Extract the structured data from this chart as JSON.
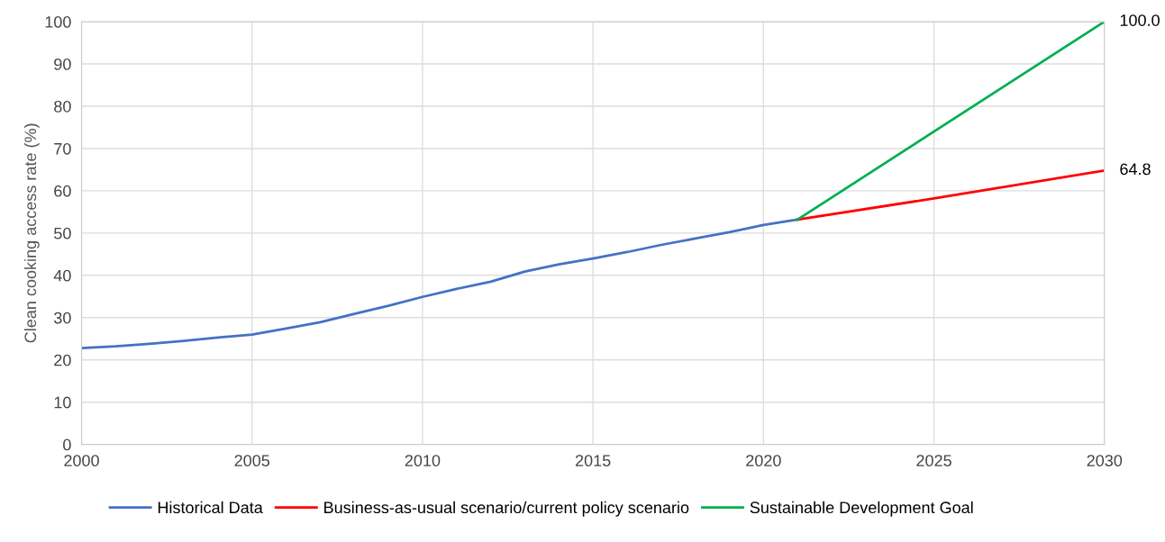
{
  "chart_data": {
    "type": "line",
    "ylabel": "Clean cooking access rate (%)",
    "xlim": [
      2000,
      2030
    ],
    "xticks": [
      2000,
      2005,
      2010,
      2015,
      2020,
      2025,
      2030
    ],
    "ylim": [
      0,
      100
    ],
    "yticks": [
      0,
      10,
      20,
      30,
      40,
      50,
      60,
      70,
      80,
      90,
      100
    ],
    "grid": true,
    "legend": "bottom",
    "marker": "none",
    "line_style": "solid",
    "series": [
      {
        "name": "Historical Data",
        "color": "#4472c4",
        "x": [
          2000,
          2001,
          2002,
          2003,
          2004,
          2005,
          2006,
          2007,
          2008,
          2009,
          2010,
          2011,
          2012,
          2013,
          2014,
          2015,
          2016,
          2017,
          2018,
          2019,
          2020,
          2021
        ],
        "values": [
          22.8,
          23.2,
          23.8,
          24.5,
          25.3,
          26.0,
          27.4,
          28.9,
          30.9,
          32.8,
          34.9,
          36.8,
          38.5,
          40.9,
          42.6,
          44.0,
          45.5,
          47.2,
          48.7,
          50.2,
          51.9,
          53.2
        ]
      },
      {
        "name": "Business-as-usual scenario/current policy scenario",
        "color": "#ff0000",
        "x": [
          2021,
          2025,
          2030
        ],
        "values": [
          53.2,
          58.2,
          64.8
        ]
      },
      {
        "name": "Sustainable Development Goal",
        "color": "#00b050",
        "x": [
          2021,
          2030
        ],
        "values": [
          53.2,
          100.0
        ]
      }
    ],
    "annotations": [
      {
        "text": "100.0",
        "x": 2030,
        "y": 100.0
      },
      {
        "text": "64.8",
        "x": 2030,
        "y": 64.8
      }
    ]
  }
}
